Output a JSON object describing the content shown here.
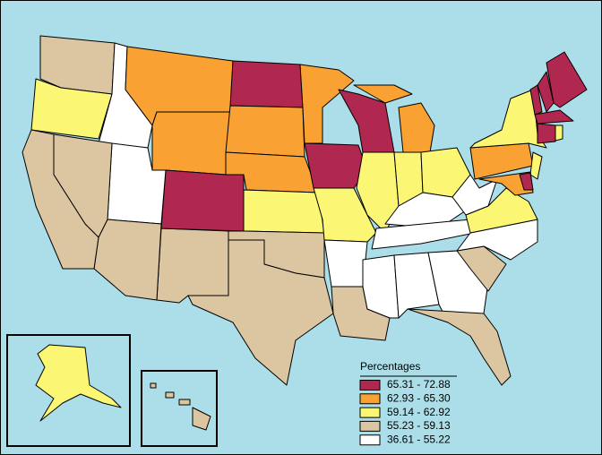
{
  "legend": {
    "title": "Percentages",
    "items": [
      {
        "label": "65.31 - 72.88",
        "color": "#b0284f"
      },
      {
        "label": "62.93 - 65.30",
        "color": "#f9a233"
      },
      {
        "label": "59.14 - 62.92",
        "color": "#fbf774"
      },
      {
        "label": "55.23 - 59.13",
        "color": "#dcc6a2"
      },
      {
        "label": "36.61 - 55.22",
        "color": "#ffffff"
      }
    ]
  }
}
